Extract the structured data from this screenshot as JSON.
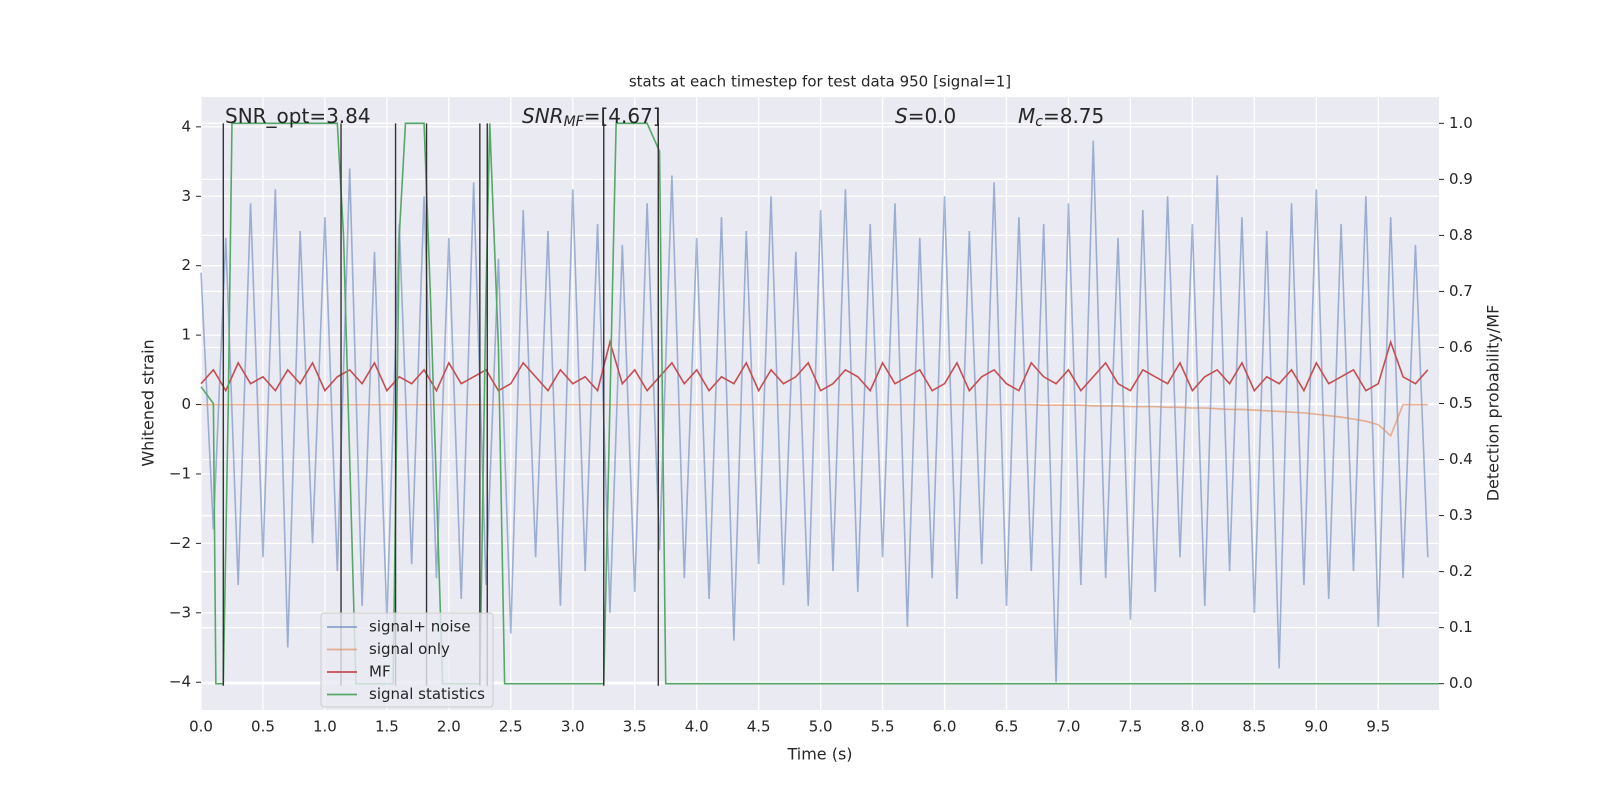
{
  "chart_data": {
    "type": "line",
    "title": "stats at each timestep for test data 950 [signal=1]",
    "x_label": "Time (s)",
    "y_label": "Whitened strain",
    "y2_label": "Detection probability/MF",
    "xlim": [
      0,
      9.99
    ],
    "ylim": [
      -4.4,
      4.43
    ],
    "y2lim": [
      -0.047,
      1.047
    ],
    "xticks": [
      {
        "value": 0,
        "label": "0.0"
      },
      0.5,
      {
        "value": 1,
        "label": "1.0"
      },
      1.5,
      {
        "value": 2,
        "label": "2.0"
      },
      2.5,
      {
        "value": 3,
        "label": "3.0"
      },
      3.5,
      {
        "value": 4,
        "label": "4.0"
      },
      4.5,
      {
        "value": 5,
        "label": "5.0"
      },
      5.5,
      {
        "value": 6,
        "label": "6.0"
      },
      6.5,
      {
        "value": 7,
        "label": "7.0"
      },
      7.5,
      {
        "value": 8,
        "label": "8.0"
      },
      8.5,
      {
        "value": 9,
        "label": "9.0"
      },
      9.5
    ],
    "yticks": [
      {
        "value": -4,
        "label": "−4"
      },
      {
        "value": -3,
        "label": "−3"
      },
      {
        "value": -2,
        "label": "−2"
      },
      {
        "value": -1,
        "label": "−1"
      },
      0,
      1,
      2,
      3,
      4
    ],
    "y2ticks": [
      {
        "value": 0,
        "label": "0.0"
      },
      0.1,
      0.2,
      0.3,
      0.4,
      0.5,
      0.6,
      0.7,
      0.8,
      0.9,
      {
        "value": 1,
        "label": "1.0"
      }
    ],
    "grid": true,
    "legend": "lower left",
    "annotations": [
      {
        "main": "SNR_opt=3.84"
      },
      {
        "main": "SNR",
        "sub": "MF",
        "tail": "=[4.67]"
      },
      {
        "main": "S",
        "tail": "=0.0"
      },
      {
        "main": "M",
        "sub": "c",
        "tail": "=8.75"
      }
    ],
    "vlines": {
      "x": [
        0.18,
        1.13,
        1.57,
        1.82,
        2.25,
        2.31,
        3.25,
        3.69
      ],
      "color": "#333333"
    },
    "x": [
      0.0,
      0.1,
      0.2,
      0.3,
      0.4,
      0.5,
      0.6,
      0.7,
      0.8,
      0.9,
      1.0,
      1.1,
      1.2,
      1.3,
      1.4,
      1.5,
      1.6,
      1.7,
      1.8,
      1.9,
      2.0,
      2.1,
      2.2,
      2.3,
      2.4,
      2.5,
      2.6,
      2.7,
      2.8,
      2.9,
      3.0,
      3.1,
      3.2,
      3.3,
      3.4,
      3.5,
      3.6,
      3.7,
      3.8,
      3.9,
      4.0,
      4.1,
      4.2,
      4.3,
      4.4,
      4.5,
      4.6,
      4.7,
      4.8,
      4.9,
      5.0,
      5.1,
      5.2,
      5.3,
      5.4,
      5.5,
      5.6,
      5.7,
      5.8,
      5.9,
      6.0,
      6.1,
      6.2,
      6.3,
      6.4,
      6.5,
      6.6,
      6.7,
      6.8,
      6.9,
      7.0,
      7.1,
      7.2,
      7.3,
      7.4,
      7.5,
      7.6,
      7.7,
      7.8,
      7.9,
      8.0,
      8.1,
      8.2,
      8.3,
      8.4,
      8.5,
      8.6,
      8.7,
      8.8,
      8.9,
      9.0,
      9.1,
      9.2,
      9.3,
      9.4,
      9.5,
      9.6,
      9.7,
      9.8,
      9.9
    ],
    "series": [
      {
        "name": "signal+ noise",
        "color": "#4c72b0",
        "values": [
          1.9,
          -1.8,
          2.4,
          -2.6,
          2.9,
          -2.2,
          3.1,
          -3.5,
          2.5,
          -2.0,
          2.7,
          -2.4,
          3.4,
          -2.9,
          2.2,
          -3.1,
          2.6,
          -2.3,
          3.0,
          -2.5,
          2.4,
          -2.8,
          3.2,
          -2.6,
          2.1,
          -3.3,
          2.8,
          -2.2,
          2.5,
          -2.9,
          3.1,
          -2.4,
          2.6,
          -3.0,
          2.3,
          -2.7,
          2.9,
          -2.1,
          3.3,
          -2.5,
          2.4,
          -2.8,
          2.7,
          -3.4,
          2.5,
          -2.3,
          3.0,
          -2.6,
          2.2,
          -2.9,
          2.8,
          -2.4,
          3.1,
          -2.7,
          2.6,
          -2.2,
          2.9,
          -3.2,
          2.4,
          -2.5,
          3.0,
          -2.8,
          2.5,
          -2.3,
          3.2,
          -2.9,
          2.7,
          -2.4,
          2.6,
          -4.0,
          2.9,
          -2.6,
          3.8,
          -2.5,
          2.4,
          -3.1,
          2.8,
          -2.7,
          3.0,
          -2.2,
          2.6,
          -2.9,
          3.3,
          -2.4,
          2.7,
          -3.0,
          2.5,
          -3.8,
          2.9,
          -2.6,
          3.1,
          -2.8,
          2.6,
          -2.4,
          3.0,
          -3.2,
          2.7,
          -2.5,
          2.3,
          -2.2
        ]
      },
      {
        "name": "signal only",
        "color": "#dd8452",
        "values": [
          0,
          0,
          0,
          0,
          0,
          0,
          0,
          0,
          0,
          0,
          0,
          0,
          0,
          0,
          0,
          0,
          0,
          0,
          0,
          0,
          0,
          0,
          0,
          0,
          0,
          0,
          0,
          0,
          0,
          0,
          0,
          0,
          0,
          0,
          0,
          0,
          0,
          0,
          0,
          0,
          0,
          0,
          0,
          0,
          0,
          0,
          0,
          0,
          0,
          0,
          0,
          0,
          0,
          0,
          0,
          0,
          0,
          0,
          0,
          0,
          0,
          0,
          0,
          0,
          0,
          0,
          0,
          0,
          -0.01,
          -0.01,
          -0.01,
          -0.01,
          -0.02,
          -0.02,
          -0.02,
          -0.03,
          -0.03,
          -0.03,
          -0.04,
          -0.04,
          -0.05,
          -0.05,
          -0.06,
          -0.07,
          -0.07,
          -0.08,
          -0.09,
          -0.1,
          -0.11,
          -0.12,
          -0.14,
          -0.16,
          -0.18,
          -0.21,
          -0.24,
          -0.29,
          -0.45,
          0,
          0,
          0
        ]
      },
      {
        "name": "MF",
        "color": "#c44e52",
        "values": [
          0.3,
          0.5,
          0.2,
          0.6,
          0.3,
          0.4,
          0.2,
          0.5,
          0.3,
          0.6,
          0.2,
          0.4,
          0.5,
          0.3,
          0.6,
          0.2,
          0.4,
          0.3,
          0.5,
          0.2,
          0.6,
          0.3,
          0.4,
          0.5,
          0.2,
          0.3,
          0.6,
          0.4,
          0.2,
          0.5,
          0.3,
          0.4,
          0.2,
          0.9,
          0.3,
          0.5,
          0.2,
          0.4,
          0.6,
          0.3,
          0.5,
          0.2,
          0.4,
          0.3,
          0.6,
          0.2,
          0.5,
          0.3,
          0.4,
          0.6,
          0.2,
          0.3,
          0.5,
          0.4,
          0.2,
          0.6,
          0.3,
          0.4,
          0.5,
          0.2,
          0.3,
          0.6,
          0.2,
          0.4,
          0.5,
          0.3,
          0.2,
          0.6,
          0.4,
          0.3,
          0.5,
          0.2,
          0.4,
          0.6,
          0.3,
          0.2,
          0.5,
          0.4,
          0.3,
          0.6,
          0.2,
          0.4,
          0.5,
          0.3,
          0.6,
          0.2,
          0.4,
          0.3,
          0.5,
          0.2,
          0.6,
          0.3,
          0.4,
          0.5,
          0.2,
          0.3,
          0.9,
          0.4,
          0.3,
          0.5
        ]
      },
      {
        "name": "signal statistics",
        "color": "#55a868",
        "axis": "y2",
        "x": [
          0,
          0.1,
          0.12,
          0.18,
          0.22,
          0.25,
          1.1,
          1.15,
          1.25,
          1.55,
          1.6,
          1.65,
          1.8,
          1.85,
          1.95,
          2.25,
          2.3,
          2.33,
          2.4,
          2.45,
          3.25,
          3.3,
          3.35,
          3.6,
          3.7,
          3.75,
          9.99
        ],
        "values": [
          0.53,
          0.5,
          0,
          0,
          0.5,
          1.0,
          1.0,
          0.8,
          0,
          0,
          0.8,
          1.0,
          1.0,
          0.7,
          0,
          0,
          0.7,
          1.0,
          0.6,
          0,
          0,
          0.5,
          1.0,
          1.0,
          0.95,
          0,
          0
        ]
      }
    ]
  }
}
